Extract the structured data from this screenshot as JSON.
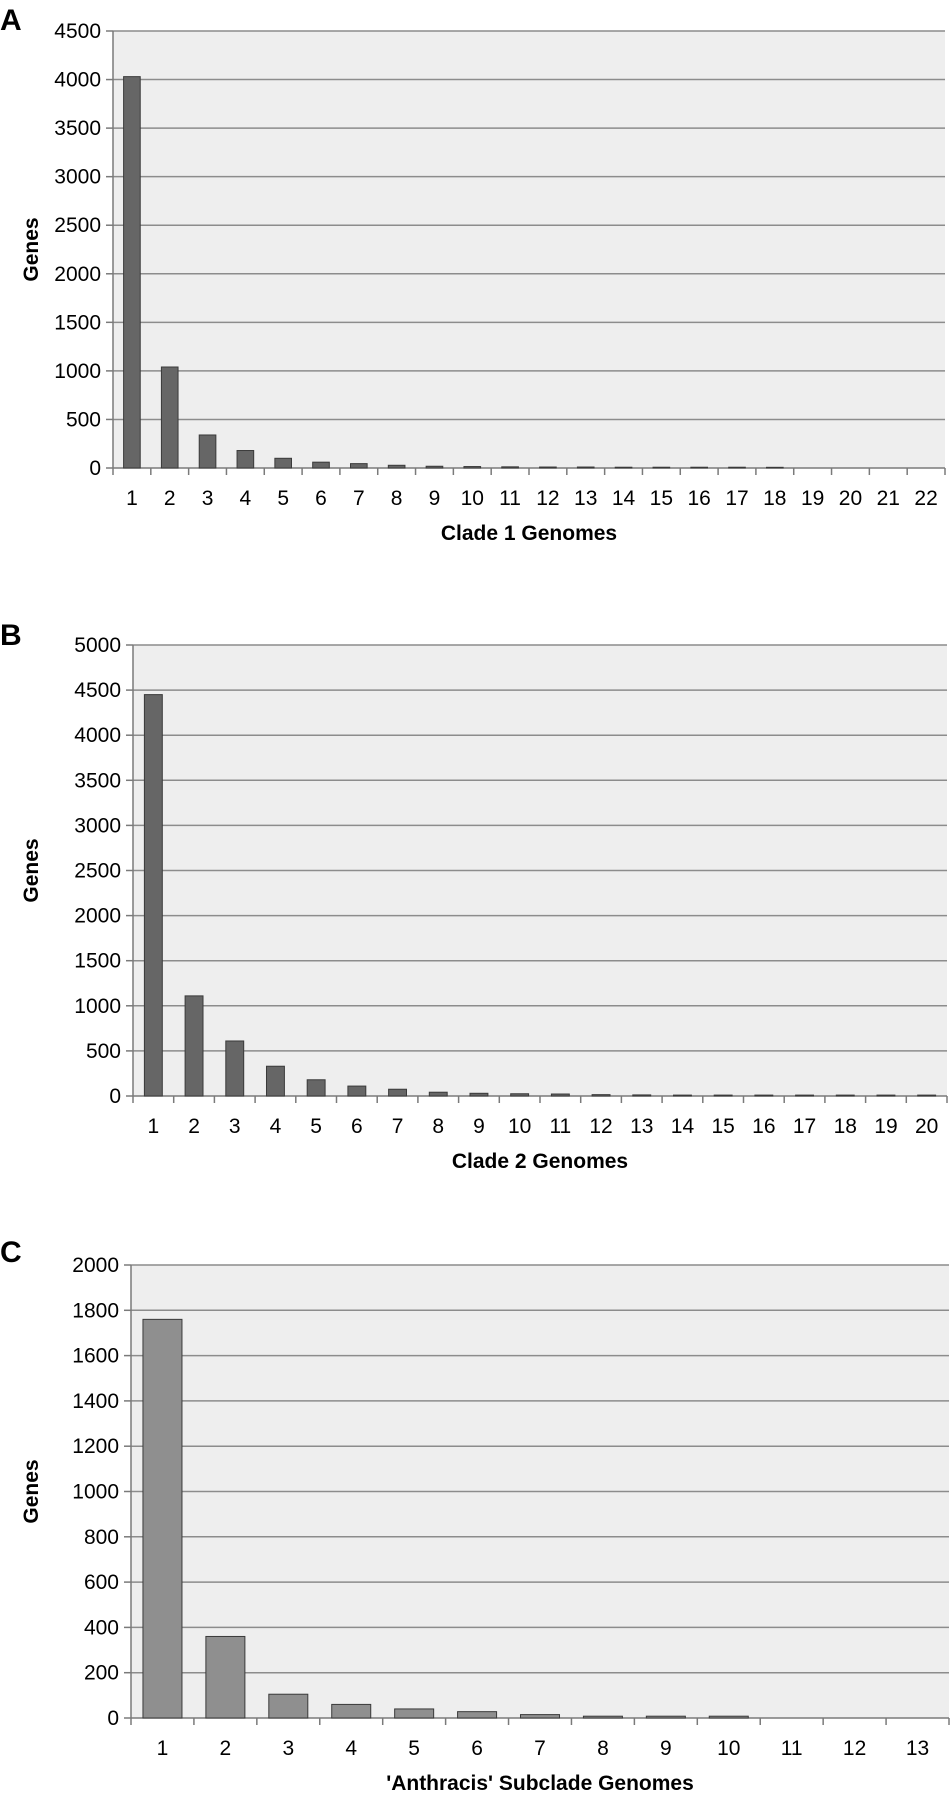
{
  "chart_data": [
    {
      "type": "bar",
      "panel": "A",
      "categories": [
        "1",
        "2",
        "3",
        "4",
        "5",
        "6",
        "7",
        "8",
        "9",
        "10",
        "11",
        "12",
        "13",
        "14",
        "15",
        "16",
        "17",
        "18",
        "19",
        "20",
        "21",
        "22"
      ],
      "values": [
        4030,
        1040,
        340,
        180,
        100,
        60,
        45,
        28,
        18,
        15,
        12,
        10,
        10,
        8,
        8,
        8,
        8,
        7,
        0,
        0,
        0,
        0
      ],
      "xlabel": "Clade 1 Genomes",
      "ylabel": "Genes",
      "ylim": [
        0,
        4500
      ],
      "yticks": [
        0,
        500,
        1000,
        1500,
        2000,
        2500,
        3000,
        3500,
        4000,
        4500
      ],
      "bar_color": "#666666",
      "grid": true
    },
    {
      "type": "bar",
      "panel": "B",
      "categories": [
        "1",
        "2",
        "3",
        "4",
        "5",
        "6",
        "7",
        "8",
        "9",
        "10",
        "11",
        "12",
        "13",
        "14",
        "15",
        "16",
        "17",
        "18",
        "19",
        "20"
      ],
      "values": [
        4450,
        1110,
        610,
        330,
        180,
        110,
        75,
        42,
        30,
        25,
        22,
        15,
        12,
        10,
        10,
        10,
        10,
        10,
        10,
        10
      ],
      "xlabel": "Clade 2 Genomes",
      "ylabel": "Genes",
      "ylim": [
        0,
        5000
      ],
      "yticks": [
        0,
        500,
        1000,
        1500,
        2000,
        2500,
        3000,
        3500,
        4000,
        4500,
        5000
      ],
      "bar_color": "#666666",
      "grid": true
    },
    {
      "type": "bar",
      "panel": "C",
      "categories": [
        "1",
        "2",
        "3",
        "4",
        "5",
        "6",
        "7",
        "8",
        "9",
        "10",
        "11",
        "12",
        "13"
      ],
      "values": [
        1760,
        360,
        105,
        60,
        40,
        28,
        15,
        8,
        8,
        8,
        0,
        0,
        0
      ],
      "xlabel": "'Anthracis' Subclade Genomes",
      "ylabel": "Genes",
      "ylim": [
        0,
        2000
      ],
      "yticks": [
        0,
        200,
        400,
        600,
        800,
        1000,
        1200,
        1400,
        1600,
        1800,
        2000
      ],
      "bar_color": "#8f8f8f",
      "grid": true
    }
  ],
  "colors": {
    "plot_background": "#eeeeee",
    "gridline": "#8c8c8c"
  }
}
